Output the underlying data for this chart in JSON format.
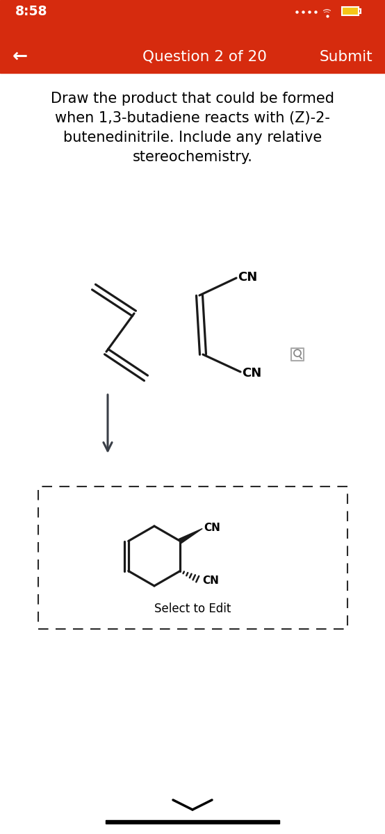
{
  "bg_color": "#ffffff",
  "header_color": "#d62b0e",
  "status_bar_height": 45,
  "nav_bar_height": 60,
  "time_text": "8:58",
  "question_text": "Question 2 of 20",
  "submit_text": "Submit",
  "question_body": "Draw the product that could be formed\nwhen 1,3-butadiene reacts with (Z)-2-\nbutenedinitrile. Include any relative\nstereochemistry.",
  "select_text": "Select to Edit",
  "arrow_color": "#3a3f47",
  "molecule_color": "#1a1a1a",
  "fig_width": 5.54,
  "fig_height": 12.0,
  "dpi": 100
}
